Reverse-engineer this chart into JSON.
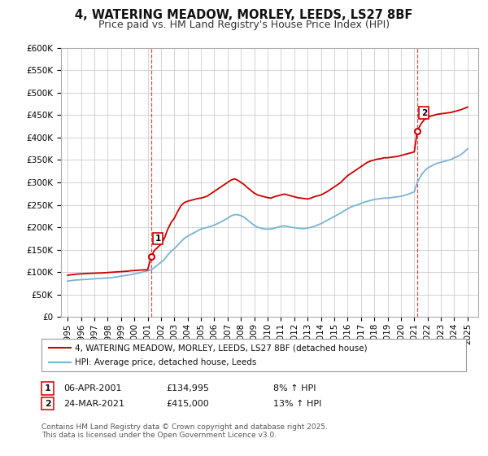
{
  "title": "4, WATERING MEADOW, MORLEY, LEEDS, LS27 8BF",
  "subtitle": "Price paid vs. HM Land Registry's House Price Index (HPI)",
  "ylim": [
    0,
    600000
  ],
  "xlim_start": 1994.5,
  "xlim_end": 2025.8,
  "marker1_x": 2001.27,
  "marker1_y": 134995,
  "marker1_label": "1",
  "marker1_date": "06-APR-2001",
  "marker1_price": "£134,995",
  "marker1_hpi": "8% ↑ HPI",
  "marker2_x": 2021.23,
  "marker2_y": 415000,
  "marker2_label": "2",
  "marker2_date": "24-MAR-2021",
  "marker2_price": "£415,000",
  "marker2_hpi": "13% ↑ HPI",
  "red_line_color": "#cc0000",
  "blue_line_color": "#7ab3d4",
  "marker_face_color": "#ffffff",
  "marker_edge_color": "#cc0000",
  "vline_color": "#cc0000",
  "grid_color": "#cccccc",
  "legend_line1": "4, WATERING MEADOW, MORLEY, LEEDS, LS27 8BF (detached house)",
  "legend_line2": "HPI: Average price, detached house, Leeds",
  "footnote": "Contains HM Land Registry data © Crown copyright and database right 2025.\nThis data is licensed under the Open Government Licence v3.0.",
  "bg_color": "#ffffff",
  "plot_bg_color": "#ffffff",
  "title_fontsize": 10.5,
  "subtitle_fontsize": 9,
  "tick_fontsize": 7.5,
  "years_x": [
    1995.0,
    1995.25,
    1995.5,
    1995.75,
    1996.0,
    1996.25,
    1996.5,
    1996.75,
    1997.0,
    1997.25,
    1997.5,
    1997.75,
    1998.0,
    1998.25,
    1998.5,
    1998.75,
    1999.0,
    1999.25,
    1999.5,
    1999.75,
    2000.0,
    2000.25,
    2000.5,
    2000.75,
    2001.0,
    2001.27,
    2001.5,
    2001.75,
    2002.0,
    2002.25,
    2002.5,
    2002.75,
    2003.0,
    2003.25,
    2003.5,
    2003.75,
    2004.0,
    2004.25,
    2004.5,
    2004.75,
    2005.0,
    2005.25,
    2005.5,
    2005.75,
    2006.0,
    2006.25,
    2006.5,
    2006.75,
    2007.0,
    2007.25,
    2007.5,
    2007.75,
    2008.0,
    2008.25,
    2008.5,
    2008.75,
    2009.0,
    2009.25,
    2009.5,
    2009.75,
    2010.0,
    2010.25,
    2010.5,
    2010.75,
    2011.0,
    2011.25,
    2011.5,
    2011.75,
    2012.0,
    2012.25,
    2012.5,
    2012.75,
    2013.0,
    2013.25,
    2013.5,
    2013.75,
    2014.0,
    2014.25,
    2014.5,
    2014.75,
    2015.0,
    2015.25,
    2015.5,
    2015.75,
    2016.0,
    2016.25,
    2016.5,
    2016.75,
    2017.0,
    2017.25,
    2017.5,
    2017.75,
    2018.0,
    2018.25,
    2018.5,
    2018.75,
    2019.0,
    2019.25,
    2019.5,
    2019.75,
    2020.0,
    2020.25,
    2020.5,
    2020.75,
    2021.0,
    2021.23,
    2021.5,
    2021.75,
    2022.0,
    2022.25,
    2022.5,
    2022.75,
    2023.0,
    2023.25,
    2023.5,
    2023.75,
    2024.0,
    2024.25,
    2024.5,
    2024.75,
    2025.0
  ],
  "red_y": [
    93000,
    94000,
    95000,
    95500,
    96000,
    96500,
    97000,
    97200,
    97500,
    97800,
    98000,
    98500,
    99000,
    99500,
    100000,
    100500,
    101000,
    101500,
    102000,
    103000,
    103500,
    104000,
    104500,
    105000,
    105000,
    134995,
    148000,
    155000,
    162000,
    175000,
    195000,
    210000,
    220000,
    235000,
    248000,
    255000,
    258000,
    260000,
    262000,
    264000,
    265000,
    267000,
    270000,
    275000,
    280000,
    285000,
    290000,
    295000,
    300000,
    305000,
    308000,
    305000,
    300000,
    295000,
    288000,
    282000,
    276000,
    272000,
    270000,
    268000,
    266000,
    265000,
    268000,
    270000,
    272000,
    274000,
    272000,
    270000,
    268000,
    266000,
    265000,
    264000,
    263000,
    265000,
    268000,
    270000,
    272000,
    276000,
    280000,
    285000,
    290000,
    295000,
    300000,
    308000,
    315000,
    320000,
    325000,
    330000,
    335000,
    340000,
    345000,
    348000,
    350000,
    352000,
    353000,
    355000,
    355000,
    356000,
    357000,
    358000,
    360000,
    362000,
    364000,
    366000,
    368000,
    415000,
    430000,
    440000,
    445000,
    448000,
    450000,
    452000,
    453000,
    454000,
    455000,
    456000,
    458000,
    460000,
    462000,
    465000,
    468000
  ],
  "blue_y": [
    80000,
    81000,
    82000,
    82500,
    83000,
    83500,
    84000,
    84500,
    85000,
    85500,
    86000,
    86500,
    87000,
    87500,
    88500,
    89500,
    91000,
    92000,
    93000,
    94500,
    96000,
    97500,
    99000,
    101000,
    103000,
    105000,
    110000,
    116000,
    122000,
    128000,
    138000,
    146000,
    152000,
    160000,
    168000,
    175000,
    180000,
    184000,
    188000,
    192000,
    196000,
    198000,
    200000,
    202000,
    205000,
    208000,
    212000,
    216000,
    220000,
    225000,
    228000,
    228000,
    226000,
    222000,
    216000,
    210000,
    204000,
    200000,
    198000,
    196000,
    196000,
    196000,
    198000,
    200000,
    202000,
    203000,
    202000,
    200000,
    199000,
    198000,
    197000,
    197000,
    198000,
    200000,
    202000,
    205000,
    208000,
    212000,
    216000,
    220000,
    224000,
    228000,
    232000,
    237000,
    241000,
    245000,
    248000,
    250000,
    253000,
    256000,
    258000,
    260000,
    262000,
    263000,
    264000,
    265000,
    265000,
    266000,
    267000,
    268000,
    269000,
    271000,
    273000,
    276000,
    279000,
    300000,
    315000,
    325000,
    332000,
    336000,
    340000,
    343000,
    345000,
    347000,
    349000,
    351000,
    355000,
    358000,
    362000,
    368000,
    375000
  ],
  "figsize": [
    6.0,
    5.6
  ],
  "dpi": 100
}
